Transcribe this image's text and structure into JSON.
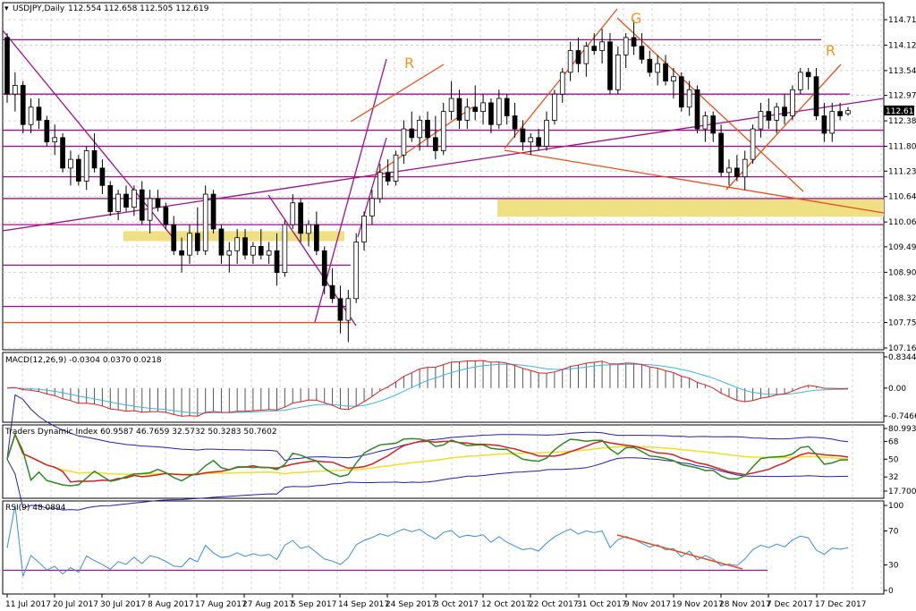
{
  "chart_data": [
    {
      "type": "candlestick",
      "title": "USDJPY,Daily",
      "ohlc_header": "112.554 112.658 112.505 112.619",
      "last_price_label": "112.619",
      "y_ticks": [
        "114.710",
        "114.125",
        "113.540",
        "112.970",
        "112.385",
        "111.800",
        "111.230",
        "110.645",
        "110.060",
        "109.490",
        "108.905",
        "108.320",
        "107.750",
        "107.165"
      ],
      "x_ticks": [
        "11 Jul 2017",
        "20 Jul 2017",
        "30 Jul 2017",
        "8 Aug 2017",
        "17 Aug 2017",
        "27 Aug 2017",
        "5 Sep 2017",
        "14 Sep 2017",
        "24 Sep 2017",
        "3 Oct 2017",
        "12 Oct 2017",
        "22 Oct 2017",
        "31 Oct 2017",
        "9 Nov 2017",
        "19 Nov 2017",
        "28 Nov 2017",
        "7 Dec 2017",
        "17 Dec 2017"
      ],
      "ylim": [
        107.1,
        114.9
      ],
      "candles": [
        [
          114.3,
          114.4,
          112.8,
          113.0
        ],
        [
          113.0,
          113.5,
          112.6,
          113.2
        ],
        [
          113.2,
          113.3,
          112.1,
          112.3
        ],
        [
          112.3,
          112.9,
          112.1,
          112.7
        ],
        [
          112.7,
          112.9,
          112.2,
          112.4
        ],
        [
          112.4,
          112.5,
          111.8,
          111.9
        ],
        [
          111.9,
          112.3,
          111.6,
          112.0
        ],
        [
          112.0,
          112.1,
          111.2,
          111.3
        ],
        [
          111.3,
          111.7,
          110.9,
          111.5
        ],
        [
          111.5,
          111.6,
          110.9,
          111.0
        ],
        [
          111.0,
          111.8,
          110.8,
          111.7
        ],
        [
          111.7,
          112.1,
          111.2,
          111.3
        ],
        [
          111.3,
          111.5,
          110.7,
          110.9
        ],
        [
          110.9,
          111.0,
          110.2,
          110.3
        ],
        [
          110.3,
          110.8,
          110.1,
          110.7
        ],
        [
          110.7,
          110.9,
          110.3,
          110.4
        ],
        [
          110.4,
          110.9,
          110.2,
          110.8
        ],
        [
          110.8,
          111.0,
          110.0,
          110.1
        ],
        [
          110.1,
          110.8,
          109.8,
          110.6
        ],
        [
          110.6,
          110.8,
          110.3,
          110.4
        ],
        [
          110.4,
          110.5,
          109.9,
          110.0
        ],
        [
          110.0,
          110.2,
          109.3,
          109.4
        ],
        [
          109.4,
          109.7,
          108.9,
          109.3
        ],
        [
          109.3,
          110.0,
          109.1,
          109.8
        ],
        [
          109.8,
          110.4,
          109.3,
          109.4
        ],
        [
          109.4,
          110.9,
          109.3,
          110.7
        ],
        [
          110.7,
          110.8,
          109.8,
          109.9
        ],
        [
          109.9,
          110.0,
          109.1,
          109.3
        ],
        [
          109.3,
          109.6,
          108.9,
          109.4
        ],
        [
          109.4,
          109.9,
          109.1,
          109.7
        ],
        [
          109.7,
          109.9,
          109.2,
          109.3
        ],
        [
          109.3,
          109.6,
          109.1,
          109.5
        ],
        [
          109.5,
          109.9,
          109.2,
          109.3
        ],
        [
          109.3,
          109.6,
          109.1,
          109.4
        ],
        [
          109.4,
          109.8,
          108.6,
          108.9
        ],
        [
          108.9,
          110.1,
          108.8,
          110.0
        ],
        [
          110.0,
          110.7,
          109.9,
          110.5
        ],
        [
          110.5,
          110.6,
          109.6,
          109.8
        ],
        [
          109.8,
          110.1,
          109.5,
          110.0
        ],
        [
          110.0,
          110.3,
          109.3,
          109.4
        ],
        [
          109.4,
          109.5,
          108.4,
          108.6
        ],
        [
          108.6,
          109.0,
          108.2,
          108.3
        ],
        [
          108.3,
          108.6,
          107.5,
          107.8
        ],
        [
          107.8,
          108.5,
          107.3,
          108.3
        ],
        [
          108.3,
          109.8,
          108.2,
          109.6
        ],
        [
          109.6,
          110.3,
          109.4,
          110.2
        ],
        [
          110.2,
          110.8,
          110.0,
          110.6
        ],
        [
          110.6,
          111.4,
          110.5,
          111.2
        ],
        [
          111.2,
          111.5,
          110.9,
          111.0
        ],
        [
          111.0,
          111.7,
          110.9,
          111.6
        ],
        [
          111.6,
          112.4,
          111.4,
          112.2
        ],
        [
          112.2,
          112.6,
          111.9,
          112.0
        ],
        [
          112.0,
          112.5,
          111.7,
          112.4
        ],
        [
          112.4,
          112.6,
          111.8,
          112.0
        ],
        [
          112.0,
          112.5,
          111.5,
          111.7
        ],
        [
          111.7,
          112.8,
          111.6,
          112.6
        ],
        [
          112.6,
          113.3,
          112.4,
          112.9
        ],
        [
          112.9,
          113.1,
          112.2,
          112.4
        ],
        [
          112.4,
          112.9,
          112.2,
          112.7
        ],
        [
          112.7,
          113.2,
          112.4,
          112.6
        ],
        [
          112.6,
          113.0,
          112.3,
          112.8
        ],
        [
          112.8,
          112.9,
          112.1,
          112.3
        ],
        [
          112.3,
          113.1,
          112.2,
          112.9
        ],
        [
          112.9,
          113.0,
          112.3,
          112.5
        ],
        [
          112.5,
          112.8,
          112.0,
          112.2
        ],
        [
          112.2,
          112.4,
          111.7,
          111.9
        ],
        [
          111.9,
          112.1,
          111.6,
          112.0
        ],
        [
          112.0,
          112.2,
          111.7,
          111.8
        ],
        [
          111.8,
          112.6,
          111.7,
          112.4
        ],
        [
          112.4,
          113.1,
          112.3,
          113.0
        ],
        [
          113.0,
          113.6,
          112.8,
          113.5
        ],
        [
          113.5,
          114.2,
          113.3,
          114.0
        ],
        [
          114.0,
          114.3,
          113.5,
          113.7
        ],
        [
          113.7,
          114.2,
          113.4,
          114.1
        ],
        [
          114.1,
          114.4,
          113.9,
          114.0
        ],
        [
          114.0,
          114.5,
          113.7,
          114.2
        ],
        [
          114.2,
          114.4,
          113.0,
          113.1
        ],
        [
          113.1,
          114.1,
          113.0,
          113.9
        ],
        [
          113.9,
          114.4,
          113.6,
          114.3
        ],
        [
          114.3,
          114.7,
          113.9,
          114.1
        ],
        [
          114.1,
          114.4,
          113.7,
          113.8
        ],
        [
          113.8,
          114.0,
          113.4,
          113.5
        ],
        [
          113.5,
          113.9,
          113.2,
          113.7
        ],
        [
          113.7,
          113.9,
          113.2,
          113.3
        ],
        [
          113.3,
          113.6,
          112.9,
          113.4
        ],
        [
          113.4,
          113.5,
          112.6,
          112.7
        ],
        [
          112.7,
          113.3,
          112.5,
          113.1
        ],
        [
          113.1,
          113.2,
          112.1,
          112.2
        ],
        [
          112.2,
          112.6,
          111.9,
          112.5
        ],
        [
          112.5,
          112.6,
          111.9,
          112.1
        ],
        [
          112.1,
          112.3,
          111.1,
          111.2
        ],
        [
          111.2,
          111.5,
          110.9,
          111.3
        ],
        [
          111.3,
          111.6,
          111.0,
          111.1
        ],
        [
          111.1,
          111.7,
          110.8,
          111.5
        ],
        [
          111.5,
          112.3,
          111.4,
          112.2
        ],
        [
          112.2,
          112.8,
          112.0,
          112.6
        ],
        [
          112.6,
          112.9,
          112.2,
          112.4
        ],
        [
          112.4,
          112.8,
          112.1,
          112.7
        ],
        [
          112.7,
          113.0,
          112.3,
          112.5
        ],
        [
          112.5,
          113.2,
          112.4,
          113.1
        ],
        [
          113.1,
          113.6,
          113.0,
          113.5
        ],
        [
          113.5,
          113.6,
          113.1,
          113.4
        ],
        [
          113.4,
          113.6,
          112.4,
          112.5
        ],
        [
          112.5,
          112.8,
          111.9,
          112.1
        ],
        [
          112.1,
          112.8,
          111.9,
          112.6
        ],
        [
          112.6,
          112.8,
          112.4,
          112.5
        ],
        [
          112.55,
          112.7,
          112.5,
          112.62
        ]
      ]
    },
    {
      "type": "bar",
      "title": "MACD(12,26,9) -0.0304 0.0370 0.0218",
      "y_ticks": [
        "0.8344",
        "0.00",
        "-0.7466"
      ],
      "ylim": [
        -0.8,
        0.9
      ]
    },
    {
      "type": "line",
      "title": "Traders Dynamic Index 60.9587 46.7659 32.5732 50.3283 50.7602",
      "y_ticks": [
        "80.993",
        "68",
        "50",
        "32",
        "17.7009"
      ],
      "ylim": [
        17,
        82
      ]
    },
    {
      "type": "line",
      "title": "RSI(9) 48.0894",
      "y_ticks": [
        "100",
        "70",
        "30",
        "0"
      ],
      "ylim": [
        0,
        100
      ]
    }
  ],
  "annotations": [
    "R",
    "G",
    "R"
  ],
  "colors": {
    "bull": "#ffffff",
    "bear": "#000000",
    "magenta": "#a0108a",
    "orange": "#e8501a",
    "zone": "#f0e084",
    "grid": "#c8c8c8",
    "macd_signal": "#e02020",
    "macd_line": "#39b8e0",
    "tdi_green": "#2e8b22",
    "tdi_red": "#d42020",
    "tdi_yellow": "#f0e020",
    "tdi_blue": "#2020b0",
    "rsi": "#3a8de0"
  }
}
